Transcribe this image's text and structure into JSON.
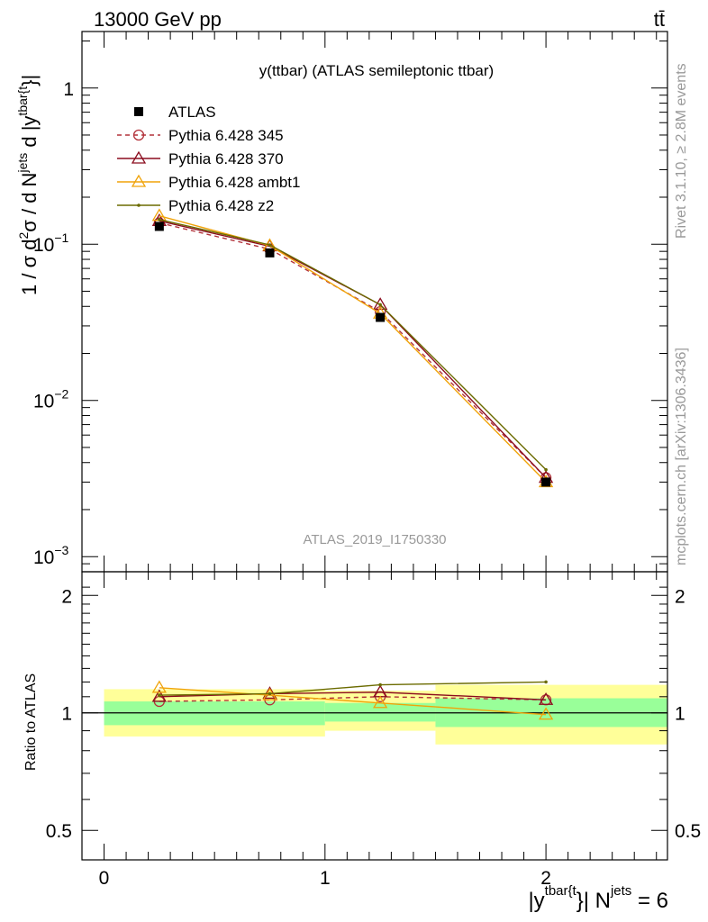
{
  "header": {
    "energy_label": "13000 GeV pp",
    "process_label": "tt̄"
  },
  "side_labels": {
    "rivet": "Rivet 3.1.10, ≥ 2.8M events",
    "mcplots": "mcplots.cern.ch [arXiv:1306.3436]"
  },
  "chart_data": {
    "type": "line",
    "title": "y(ttbar) (ATLAS semileptonic ttbar)",
    "analysis_label": "ATLAS_2019_I1750330",
    "xlabel_main": "|y",
    "xlabel_sup": "tbar{t",
    "xlabel_tail": "}| N",
    "xlabel_sup2": "jets",
    "xlabel_end": " = 6",
    "ylabel_main": {
      "p1": "1 / σ d",
      "s1": "2",
      "p2": "σ / d N",
      "s2": "jets",
      "p3": " d |y",
      "s3": "tbar{t",
      "p4": "}|"
    },
    "ratio_ylabel": "Ratio to ATLAS",
    "xlim": [
      -0.1,
      2.55
    ],
    "ylim": [
      0.0008,
      2.3
    ],
    "ratio_ylim": [
      0.42,
      2.3
    ],
    "ylog": true,
    "grid": false,
    "legend_position": "top-left",
    "x_ticks": [
      {
        "v": 0,
        "label": "0"
      },
      {
        "v": 1,
        "label": "1"
      },
      {
        "v": 2,
        "label": "2"
      }
    ],
    "y_ticks": [
      {
        "v": 1,
        "base": "1",
        "exp": ""
      },
      {
        "v": 0.1,
        "base": "10",
        "exp": "−1"
      },
      {
        "v": 0.01,
        "base": "10",
        "exp": "−2"
      },
      {
        "v": 0.001,
        "base": "10",
        "exp": "−3"
      }
    ],
    "ratio_ticks": [
      {
        "v": 2,
        "label": "2"
      },
      {
        "v": 1,
        "label": "1"
      },
      {
        "v": 0.5,
        "label": "0.5"
      }
    ],
    "x": [
      0.25,
      0.75,
      1.25,
      2.0
    ],
    "data": {
      "name": "ATLAS",
      "values": [
        0.13,
        0.088,
        0.034,
        0.003
      ]
    },
    "bands": [
      {
        "x0": 0.0,
        "x1": 1.0,
        "green_lo": 0.93,
        "green_hi": 1.07,
        "yellow_lo": 0.87,
        "yellow_hi": 1.15
      },
      {
        "x0": 1.0,
        "x1": 1.5,
        "green_lo": 0.95,
        "green_hi": 1.06,
        "yellow_lo": 0.9,
        "yellow_hi": 1.14
      },
      {
        "x0": 1.5,
        "x1": 2.55,
        "green_lo": 0.92,
        "green_hi": 1.09,
        "yellow_lo": 0.83,
        "yellow_hi": 1.18
      }
    ],
    "series": [
      {
        "name": "Pythia 6.428 345",
        "color": "#b2323a",
        "dash": true,
        "marker": "circle",
        "values": [
          0.137,
          0.093,
          0.037,
          0.0032
        ],
        "ratio": [
          1.07,
          1.08,
          1.1,
          1.08
        ]
      },
      {
        "name": "Pythia 6.428 370",
        "color": "#8b0c1e",
        "dash": false,
        "marker": "triangle",
        "values": [
          0.141,
          0.097,
          0.041,
          0.0032
        ],
        "ratio": [
          1.1,
          1.12,
          1.13,
          1.08
        ]
      },
      {
        "name": "Pythia 6.428 ambt1",
        "color": "#f0a30a",
        "dash": false,
        "marker": "triangle",
        "values": [
          0.152,
          0.098,
          0.036,
          0.003
        ],
        "ratio": [
          1.16,
          1.11,
          1.06,
          0.99
        ]
      },
      {
        "name": "Pythia 6.428 z2",
        "color": "#6b6b00",
        "dash": false,
        "marker": "dot",
        "values": [
          0.144,
          0.099,
          0.041,
          0.0036
        ],
        "ratio": [
          1.11,
          1.12,
          1.18,
          1.2
        ]
      }
    ]
  }
}
